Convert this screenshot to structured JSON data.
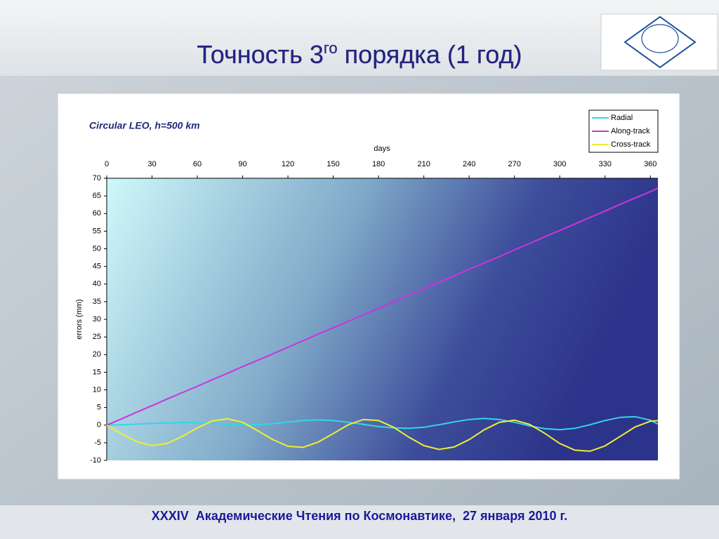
{
  "slide": {
    "title": [
      "Точность 3",
      "го",
      " порядка (1 год)"
    ],
    "footer": "XXXIV  Академические Чтения по Космонавтике,  27 января 2010 г."
  },
  "chart_data": {
    "type": "line",
    "title": "Circular LEO, h=500 km",
    "x_label": "days",
    "y_label": "errors (mm)",
    "x": [
      0,
      10,
      20,
      30,
      40,
      50,
      60,
      70,
      80,
      90,
      100,
      110,
      120,
      130,
      140,
      150,
      160,
      170,
      180,
      190,
      200,
      210,
      220,
      230,
      240,
      250,
      260,
      270,
      280,
      290,
      300,
      310,
      320,
      330,
      340,
      350,
      360,
      365
    ],
    "series": [
      {
        "name": "Radial",
        "color": "#33d6e8",
        "values": [
          0,
          0.1,
          0.3,
          0.5,
          0.6,
          0.7,
          0.7,
          0.5,
          0.3,
          0.1,
          0.1,
          0.4,
          0.9,
          1.3,
          1.5,
          1.3,
          0.8,
          0.2,
          -0.4,
          -0.8,
          -0.9,
          -0.6,
          0.1,
          0.9,
          1.6,
          1.9,
          1.6,
          0.8,
          -0.2,
          -1.0,
          -1.3,
          -0.9,
          0.1,
          1.3,
          2.2,
          2.4,
          1.4,
          0.3
        ]
      },
      {
        "name": "Along-track",
        "color": "#cc33dd",
        "values": [
          0,
          1.8,
          3.7,
          5.5,
          7.4,
          9.2,
          11.0,
          12.9,
          14.7,
          16.6,
          18.4,
          20.2,
          22.1,
          23.9,
          25.8,
          27.6,
          29.4,
          31.3,
          33.1,
          35.0,
          36.8,
          38.6,
          40.5,
          42.3,
          44.2,
          46.0,
          47.8,
          49.7,
          51.5,
          53.4,
          55.2,
          57.0,
          58.9,
          60.7,
          62.6,
          64.4,
          66.2,
          67.2
        ]
      },
      {
        "name": "Cross-track",
        "color": "#eeee33",
        "values": [
          0,
          -2.5,
          -4.7,
          -5.8,
          -5.2,
          -3.2,
          -0.8,
          1.2,
          1.8,
          0.8,
          -1.6,
          -4.1,
          -6.0,
          -6.3,
          -4.8,
          -2.4,
          0.1,
          1.6,
          1.3,
          -0.6,
          -3.4,
          -5.8,
          -6.9,
          -6.2,
          -4.1,
          -1.3,
          0.8,
          1.4,
          0.2,
          -2.3,
          -5.2,
          -7.1,
          -7.4,
          -5.9,
          -3.2,
          -0.5,
          1.1,
          1.3
        ]
      }
    ],
    "xlim": [
      0,
      365
    ],
    "xticks": [
      0,
      30,
      60,
      90,
      120,
      150,
      180,
      210,
      240,
      270,
      300,
      330,
      360
    ],
    "ylim": [
      -10,
      70
    ],
    "yticks": [
      -10,
      -5,
      0,
      5,
      10,
      15,
      20,
      25,
      30,
      35,
      40,
      45,
      50,
      55,
      60,
      65,
      70
    ],
    "legend": "upper right"
  }
}
